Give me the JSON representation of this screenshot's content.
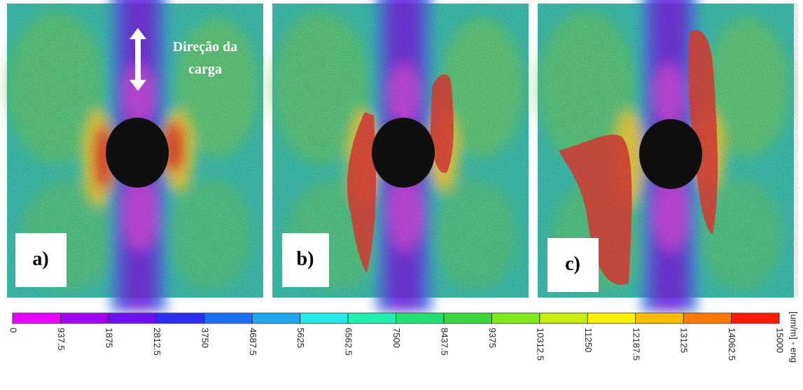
{
  "panels": [
    {
      "label": "a)"
    },
    {
      "label": "b)"
    },
    {
      "label": "c)"
    }
  ],
  "annotation": [
    "Direção da",
    "carga"
  ],
  "colorbar": {
    "lim": [
      0,
      15000
    ],
    "ticks": [
      0,
      937.5,
      1875,
      2812.5,
      3750,
      4687.5,
      5625,
      6562.5,
      7500,
      8437.5,
      9375,
      10312.5,
      11250,
      12187.5,
      13125,
      14062.5,
      15000
    ],
    "colors": [
      "#e600ff",
      "#a000f2",
      "#6a10ee",
      "#2a2ef0",
      "#1a6ef2",
      "#20a6f0",
      "#22e8e8",
      "#1ff0b0",
      "#22e070",
      "#3ad63a",
      "#7ee81a",
      "#c8ee10",
      "#f8f000",
      "#ffbe00",
      "#ff7a00",
      "#ff1a00"
    ],
    "unit": "[um/m] - eng"
  }
}
